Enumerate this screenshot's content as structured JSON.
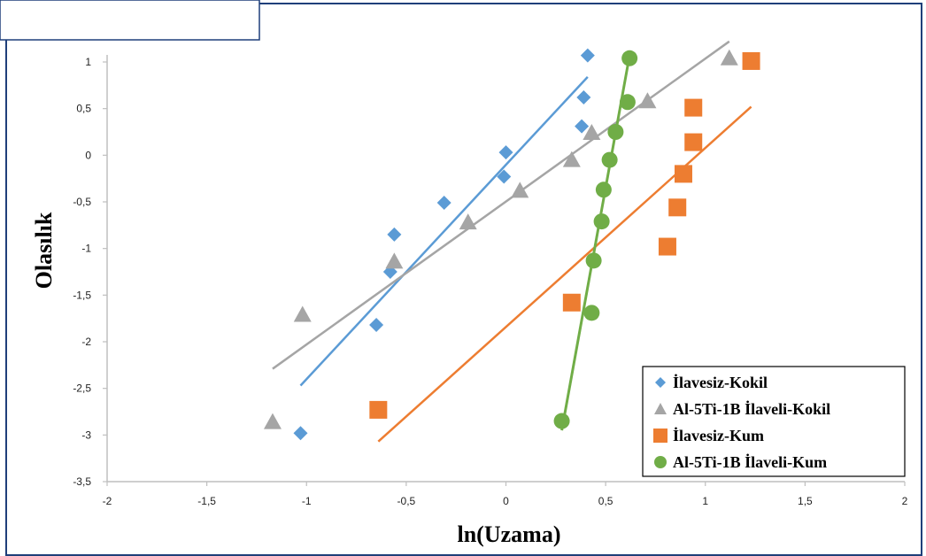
{
  "chart_data": {
    "type": "scatter",
    "title": "",
    "xlabel": "ln(Uzama)",
    "ylabel": "Olasılık",
    "xlim": [
      -2,
      2
    ],
    "ylim": [
      -3.5,
      1
    ],
    "x_ticks": [
      "-2",
      "-1,5",
      "-1",
      "-0,5",
      "0",
      "0,5",
      "1",
      "1,5",
      "2"
    ],
    "y_ticks": [
      "1",
      "0,5",
      "0",
      "-0,5",
      "-1",
      "-1,5",
      "-2",
      "-2,5",
      "-3",
      "-3,5"
    ],
    "grid": false,
    "legend_position": "bottom-right",
    "series": [
      {
        "name": "İlavesiz-Kokil",
        "marker": "diamond",
        "color": "#5b9bd5",
        "points": [
          [
            -1.03,
            -2.98
          ],
          [
            -0.65,
            -1.82
          ],
          [
            -0.58,
            -1.25
          ],
          [
            -0.56,
            -0.85
          ],
          [
            -0.31,
            -0.51
          ],
          [
            -0.01,
            -0.23
          ],
          [
            0.0,
            0.03
          ],
          [
            0.38,
            0.31
          ],
          [
            0.39,
            0.62
          ],
          [
            0.41,
            1.07
          ]
        ],
        "trendline": [
          [
            -1.03,
            -2.47
          ],
          [
            0.41,
            0.84
          ]
        ]
      },
      {
        "name": "Al-5Ti-1B İlaveli-Kokil",
        "marker": "triangle",
        "color": "#a5a5a5",
        "points": [
          [
            -1.17,
            -2.86
          ],
          [
            -1.02,
            -1.71
          ],
          [
            -0.56,
            -1.14
          ],
          [
            -0.19,
            -0.72
          ],
          [
            0.07,
            -0.38
          ],
          [
            0.33,
            -0.05
          ],
          [
            0.43,
            0.24
          ],
          [
            0.71,
            0.58
          ],
          [
            1.12,
            1.04
          ]
        ],
        "trendline": [
          [
            -1.17,
            -2.29
          ],
          [
            1.12,
            1.22
          ]
        ]
      },
      {
        "name": "İlavesiz-Kum",
        "marker": "square",
        "color": "#ed7d31",
        "points": [
          [
            -0.64,
            -2.73
          ],
          [
            0.33,
            -1.58
          ],
          [
            0.81,
            -0.98
          ],
          [
            0.86,
            -0.56
          ],
          [
            0.89,
            -0.2
          ],
          [
            0.94,
            0.14
          ],
          [
            0.94,
            0.51
          ],
          [
            1.23,
            1.01
          ]
        ],
        "trendline": [
          [
            -0.64,
            -3.07
          ],
          [
            1.23,
            0.52
          ]
        ]
      },
      {
        "name": "Al-5Ti-1B İlaveli-Kum",
        "marker": "circle",
        "color": "#70ad47",
        "points": [
          [
            0.28,
            -2.85
          ],
          [
            0.43,
            -1.69
          ],
          [
            0.44,
            -1.13
          ],
          [
            0.48,
            -0.71
          ],
          [
            0.49,
            -0.37
          ],
          [
            0.52,
            -0.05
          ],
          [
            0.55,
            0.25
          ],
          [
            0.61,
            0.57
          ],
          [
            0.62,
            1.04
          ]
        ],
        "trendline": [
          [
            0.28,
            -2.95
          ],
          [
            0.62,
            1.07
          ]
        ]
      }
    ]
  }
}
